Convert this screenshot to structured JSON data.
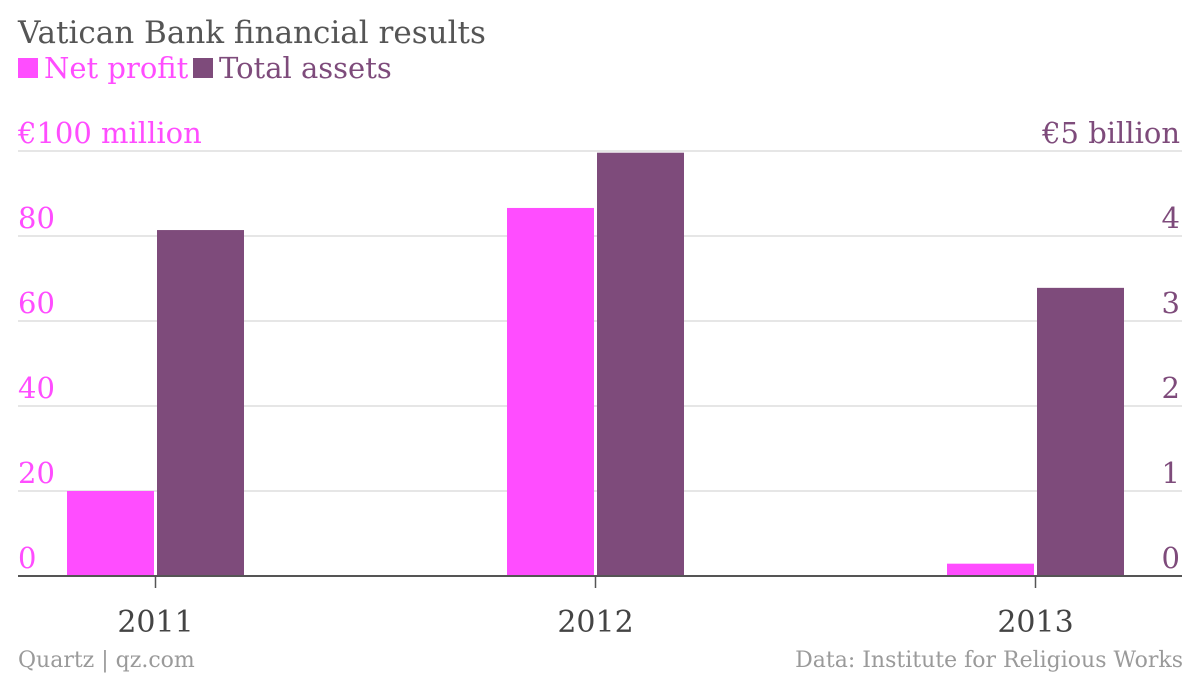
{
  "title": "Vatican Bank financial results",
  "legend": {
    "net_profit": "Net profit",
    "total_assets": "Total assets"
  },
  "colors": {
    "net_profit": "#ff4dff",
    "total_assets": "#7e4b7b",
    "grid": "#dddddd",
    "axis": "#555555"
  },
  "footer": {
    "source_left": "Quartz | qz.com",
    "source_right": "Data: Institute for Religious Works"
  },
  "chart_data": {
    "type": "bar",
    "categories": [
      "2011",
      "2012",
      "2013"
    ],
    "series": [
      {
        "name": "Net profit",
        "axis": "left",
        "values": [
          20,
          86.6,
          2.9
        ]
      },
      {
        "name": "Total assets",
        "axis": "right",
        "values": [
          4.07,
          4.98,
          3.39
        ]
      }
    ],
    "left_axis": {
      "ylim": [
        0,
        100
      ],
      "ticks": [
        "0",
        "20",
        "40",
        "60",
        "80",
        "€100 million"
      ]
    },
    "right_axis": {
      "ylim": [
        0,
        5
      ],
      "ticks": [
        "0",
        "1",
        "2",
        "3",
        "4",
        "€5 billion"
      ]
    },
    "grid": true,
    "legend_position": "top-left"
  }
}
